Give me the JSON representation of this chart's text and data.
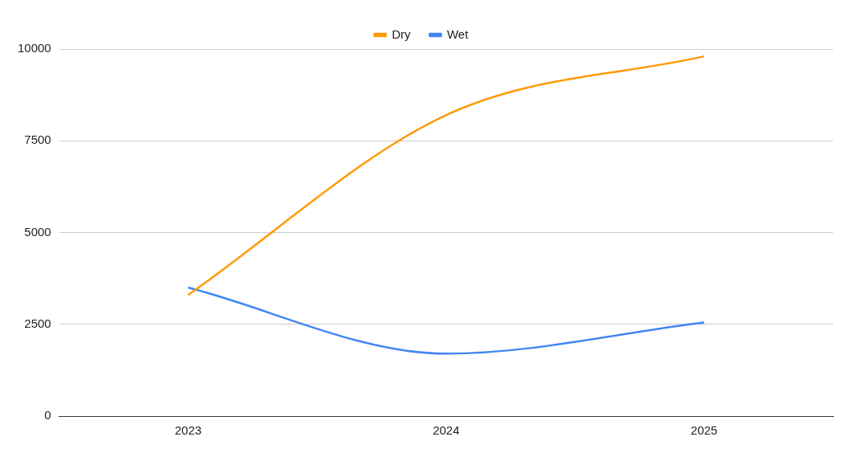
{
  "chart_data": {
    "type": "line",
    "categories": [
      "2023",
      "2024",
      "2025"
    ],
    "series": [
      {
        "name": "Dry",
        "color": "#ff9900",
        "values": [
          3300,
          8200,
          9800
        ]
      },
      {
        "name": "Wet",
        "color": "#4285f4",
        "values": [
          3500,
          1700,
          2550
        ]
      }
    ],
    "ylim": [
      0,
      10000
    ],
    "yticks": [
      0,
      2500,
      5000,
      7500,
      10000
    ],
    "grid": "y",
    "legend": "top",
    "marker": "none",
    "line_style": "solid"
  }
}
